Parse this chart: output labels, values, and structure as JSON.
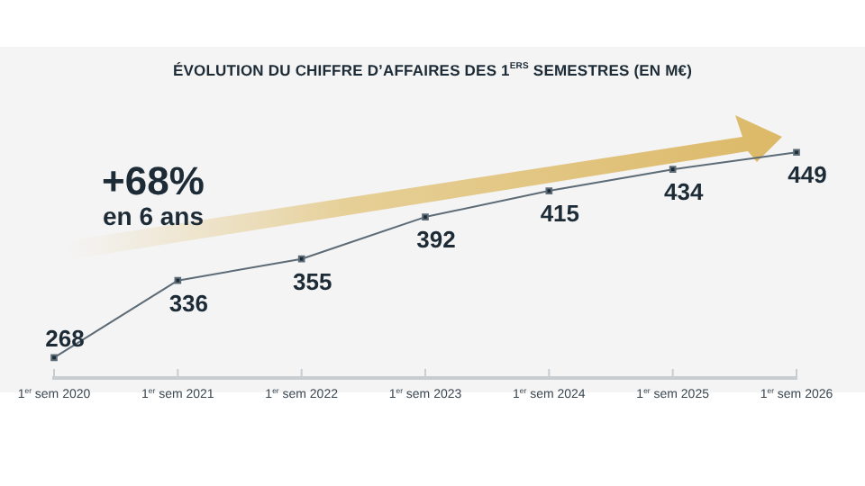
{
  "chart_data": {
    "type": "line",
    "title": "ÉVOLUTION DU CHIFFRE D’AFFAIRES DES 1$^{ERS}$ SEMESTRES (EN M€)",
    "categories": [
      "1$^{er}$ sem 2020",
      "1$^{er}$ sem 2021",
      "1$^{er}$ sem 2022",
      "1$^{er}$ sem 2023",
      "1$^{er}$ sem 2024",
      "1$^{er}$ sem 2025",
      "1$^{er}$ sem 2026"
    ],
    "series": [
      {
        "color": "#5d6b76",
        "values": [
          268,
          336,
          355,
          392,
          415,
          434,
          449
        ]
      }
    ],
    "data_labels": true,
    "marker": "square",
    "grid": false,
    "legend": false,
    "annotations": [
      "+68%",
      "en 6 ans"
    ]
  }
}
